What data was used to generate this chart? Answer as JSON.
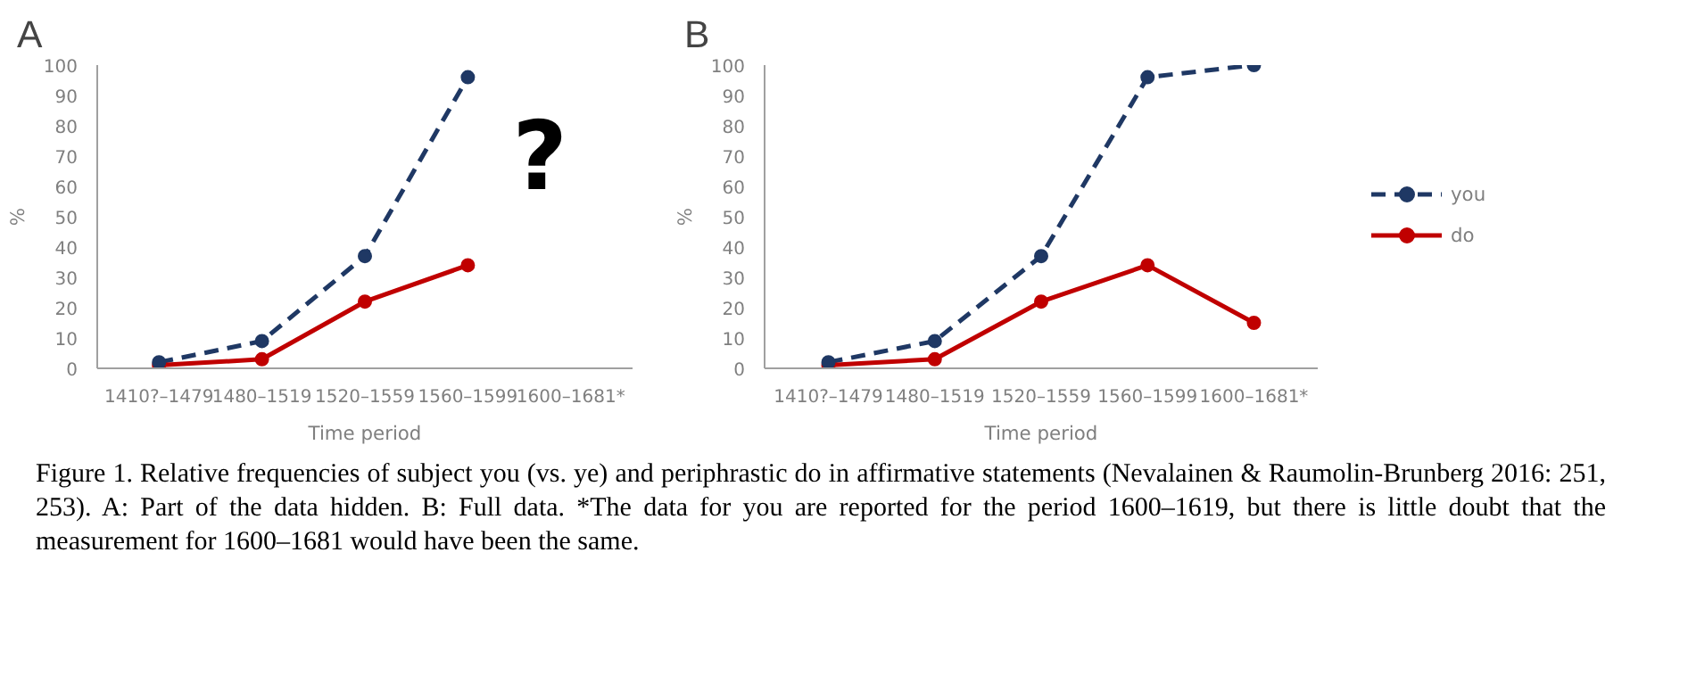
{
  "chart_data": [
    {
      "type": "line",
      "title": "A",
      "xlabel": "Time period",
      "ylabel": "%",
      "categories": [
        "1410?–1479",
        "1480–1519",
        "1520–1559",
        "1560–1599",
        "1600–1681*"
      ],
      "ylim": [
        0,
        100
      ],
      "yticks": [
        0,
        10,
        20,
        30,
        40,
        50,
        60,
        70,
        80,
        90,
        100
      ],
      "grid": false,
      "legend": false,
      "marker": "circle",
      "series": [
        {
          "color": "#1f3864",
          "line_style": "dashed",
          "values": [
            2,
            9,
            37,
            96,
            null
          ]
        },
        {
          "color": "#c00000",
          "line_style": "solid",
          "values": [
            1,
            3,
            22,
            34,
            null
          ]
        }
      ],
      "annotations": [
        "?"
      ]
    },
    {
      "type": "line",
      "title": "B",
      "xlabel": "Time period",
      "ylabel": "%",
      "categories": [
        "1410?–1479",
        "1480–1519",
        "1520–1559",
        "1560–1599",
        "1600–1681*"
      ],
      "ylim": [
        0,
        100
      ],
      "yticks": [
        0,
        10,
        20,
        30,
        40,
        50,
        60,
        70,
        80,
        90,
        100
      ],
      "grid": false,
      "legend": "right",
      "marker": "circle",
      "series": [
        {
          "name": "you",
          "color": "#1f3864",
          "line_style": "dashed",
          "values": [
            2,
            9,
            37,
            96,
            100
          ]
        },
        {
          "name": "do",
          "color": "#c00000",
          "line_style": "solid",
          "values": [
            1,
            3,
            22,
            34,
            15
          ]
        }
      ]
    },
    {
      "type": "other",
      "annotations": [
        "Figure 1. Relative frequencies of subject you (vs. ye) and periphrastic do in affirmative statements (Nevalainen & Raumolin-Brunberg 2016: 251, 253). A: Part of the data hidden. B: Full data. *The data for you are reported for the period 1600–1619, but there is little doubt that the measurement for 1600–1681 would have been the same."
      ]
    }
  ]
}
